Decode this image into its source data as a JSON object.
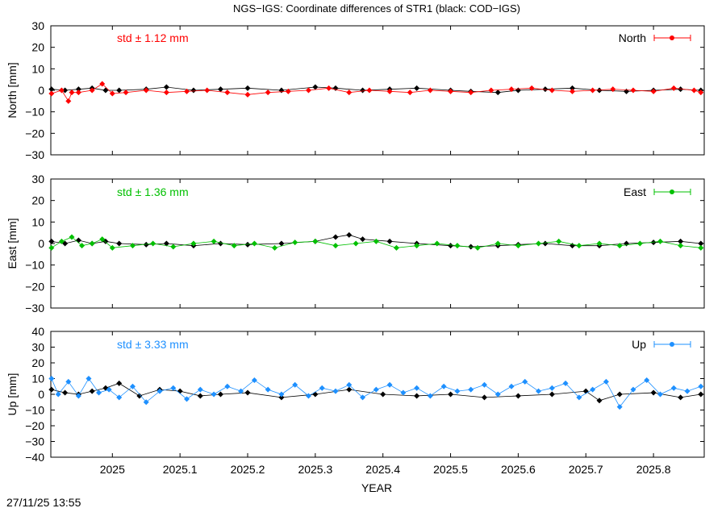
{
  "title": "NGS−IGS: Coordinate differences of STR1 (black: COD−IGS)",
  "footer_timestamp": "27/11/25 13:55",
  "xlabel": "YEAR",
  "colors": {
    "black_series": "#000000",
    "north": "#ff0000",
    "east": "#00c000",
    "up": "#1e90ff"
  },
  "chart_data": [
    {
      "type": "line",
      "panel": "north",
      "ylabel": "North [mm]",
      "ylim": [
        -30,
        30
      ],
      "yticks": [
        30,
        20,
        10,
        0,
        -10,
        -20,
        -30
      ],
      "xlim": [
        2024.909,
        2025.875
      ],
      "xticks": [
        2025,
        2025.1,
        2025.2,
        2025.3,
        2025.4,
        2025.5,
        2025.6,
        2025.7,
        2025.8
      ],
      "xticklabels": [
        "2025",
        "2025.1",
        "2025.2",
        "2025.3",
        "2025.4",
        "2025.5",
        "2025.6",
        "2025.7",
        "2025.8"
      ],
      "legend": {
        "label": "North",
        "placement": "top-right"
      },
      "std_label": "std ± 1.12 mm",
      "grid": false,
      "series": [
        {
          "color": "#000000",
          "x": [
            2024.91,
            2024.93,
            2024.95,
            2024.97,
            2024.99,
            2025.01,
            2025.05,
            2025.08,
            2025.12,
            2025.16,
            2025.2,
            2025.25,
            2025.3,
            2025.33,
            2025.37,
            2025.41,
            2025.45,
            2025.5,
            2025.53,
            2025.57,
            2025.6,
            2025.64,
            2025.68,
            2025.72,
            2025.76,
            2025.8,
            2025.84,
            2025.87
          ],
          "y": [
            0.5,
            0,
            0.5,
            1,
            0,
            0,
            0.5,
            1.5,
            0,
            0.5,
            1,
            0,
            1.5,
            1,
            0,
            0.5,
            1,
            0,
            -0.5,
            -1,
            0,
            0.5,
            1,
            0,
            -0.5,
            0,
            0.5,
            0
          ]
        },
        {
          "name": "North",
          "color": "#ff0000",
          "x": [
            2024.91,
            2024.925,
            2024.935,
            2024.94,
            2024.95,
            2024.97,
            2024.985,
            2025.0,
            2025.02,
            2025.05,
            2025.08,
            2025.11,
            2025.14,
            2025.17,
            2025.2,
            2025.23,
            2025.26,
            2025.29,
            2025.32,
            2025.35,
            2025.38,
            2025.41,
            2025.44,
            2025.47,
            2025.5,
            2025.53,
            2025.56,
            2025.59,
            2025.62,
            2025.65,
            2025.68,
            2025.71,
            2025.74,
            2025.77,
            2025.8,
            2025.83,
            2025.86,
            2025.87
          ],
          "y": [
            -1.5,
            0,
            -5,
            -1,
            -1,
            0,
            3,
            -1.5,
            -1,
            0,
            -1,
            -0.5,
            0,
            -1,
            -2,
            -1,
            -0.5,
            0,
            1,
            -1,
            0,
            -0.5,
            -1,
            0,
            -0.5,
            -1,
            0,
            0.5,
            1,
            0,
            -0.5,
            0,
            0.5,
            0,
            -0.5,
            1,
            0,
            -1
          ]
        }
      ]
    },
    {
      "type": "line",
      "panel": "east",
      "ylabel": "East [mm]",
      "ylim": [
        -30,
        30
      ],
      "yticks": [
        30,
        20,
        10,
        0,
        -10,
        -20,
        -30
      ],
      "xlim": [
        2024.909,
        2025.875
      ],
      "xticks": [
        2025,
        2025.1,
        2025.2,
        2025.3,
        2025.4,
        2025.5,
        2025.6,
        2025.7,
        2025.8
      ],
      "xticklabels": [
        "2025",
        "2025.1",
        "2025.2",
        "2025.3",
        "2025.4",
        "2025.5",
        "2025.6",
        "2025.7",
        "2025.8"
      ],
      "legend": {
        "label": "East",
        "placement": "top-right"
      },
      "std_label": "std ± 1.36 mm",
      "grid": false,
      "series": [
        {
          "color": "#000000",
          "x": [
            2024.91,
            2024.93,
            2024.95,
            2024.97,
            2024.99,
            2025.01,
            2025.05,
            2025.08,
            2025.12,
            2025.16,
            2025.2,
            2025.25,
            2025.3,
            2025.33,
            2025.35,
            2025.37,
            2025.41,
            2025.45,
            2025.5,
            2025.53,
            2025.57,
            2025.6,
            2025.64,
            2025.68,
            2025.72,
            2025.76,
            2025.8,
            2025.84,
            2025.87
          ],
          "y": [
            1,
            0,
            1.5,
            0,
            1,
            0,
            -0.5,
            0,
            -1,
            0,
            -0.5,
            0,
            1,
            3,
            4,
            2,
            1,
            0,
            -1,
            -1.5,
            -1,
            -0.5,
            0,
            -1,
            -1,
            0,
            0.5,
            1,
            0
          ]
        },
        {
          "name": "East",
          "color": "#00c000",
          "x": [
            2024.91,
            2024.925,
            2024.94,
            2024.955,
            2024.97,
            2024.985,
            2025.0,
            2025.03,
            2025.06,
            2025.09,
            2025.12,
            2025.15,
            2025.18,
            2025.21,
            2025.24,
            2025.27,
            2025.3,
            2025.33,
            2025.36,
            2025.39,
            2025.42,
            2025.45,
            2025.48,
            2025.51,
            2025.54,
            2025.57,
            2025.6,
            2025.63,
            2025.66,
            2025.69,
            2025.72,
            2025.75,
            2025.78,
            2025.81,
            2025.84,
            2025.87
          ],
          "y": [
            -2,
            1,
            3,
            -1,
            0,
            2,
            -2,
            -1,
            0,
            -1.5,
            0,
            1,
            -1,
            0,
            -2,
            0.5,
            1,
            -1,
            0,
            1,
            -2,
            -1,
            0,
            -1,
            -2,
            0,
            -1,
            0,
            1,
            -1,
            0,
            -1,
            0,
            1,
            -1,
            -2
          ]
        }
      ]
    },
    {
      "type": "line",
      "panel": "up",
      "ylabel": "Up [mm]",
      "ylim": [
        -40,
        40
      ],
      "yticks": [
        40,
        30,
        20,
        10,
        0,
        -10,
        -20,
        -30,
        -40
      ],
      "xlim": [
        2024.909,
        2025.875
      ],
      "xticks": [
        2025,
        2025.1,
        2025.2,
        2025.3,
        2025.4,
        2025.5,
        2025.6,
        2025.7,
        2025.8
      ],
      "xticklabels": [
        "2025",
        "2025.1",
        "2025.2",
        "2025.3",
        "2025.4",
        "2025.5",
        "2025.6",
        "2025.7",
        "2025.8"
      ],
      "legend": {
        "label": "Up",
        "placement": "top-right"
      },
      "std_label": "std ± 3.33 mm",
      "grid": false,
      "series": [
        {
          "color": "#000000",
          "x": [
            2024.91,
            2024.93,
            2024.95,
            2024.97,
            2024.99,
            2025.01,
            2025.04,
            2025.07,
            2025.1,
            2025.13,
            2025.16,
            2025.2,
            2025.25,
            2025.3,
            2025.35,
            2025.4,
            2025.45,
            2025.5,
            2025.55,
            2025.6,
            2025.65,
            2025.7,
            2025.72,
            2025.75,
            2025.8,
            2025.84,
            2025.87
          ],
          "y": [
            3,
            1,
            0,
            2,
            4,
            7,
            -1,
            3,
            2,
            -1,
            0,
            1,
            -2,
            0,
            3,
            0,
            -1,
            0,
            -2,
            -1,
            0,
            2,
            -4,
            0,
            1,
            -2,
            0
          ]
        },
        {
          "name": "Up",
          "color": "#1e90ff",
          "x": [
            2024.91,
            2024.92,
            2024.935,
            2024.95,
            2024.965,
            2024.98,
            2024.995,
            2025.01,
            2025.03,
            2025.05,
            2025.07,
            2025.09,
            2025.11,
            2025.13,
            2025.15,
            2025.17,
            2025.19,
            2025.21,
            2025.23,
            2025.25,
            2025.27,
            2025.29,
            2025.31,
            2025.33,
            2025.35,
            2025.37,
            2025.39,
            2025.41,
            2025.43,
            2025.45,
            2025.47,
            2025.49,
            2025.51,
            2025.53,
            2025.55,
            2025.57,
            2025.59,
            2025.61,
            2025.63,
            2025.65,
            2025.67,
            2025.69,
            2025.71,
            2025.73,
            2025.75,
            2025.77,
            2025.79,
            2025.81,
            2025.83,
            2025.85,
            2025.87
          ],
          "y": [
            10,
            0,
            8,
            -1,
            10,
            1,
            3,
            -2,
            5,
            -5,
            2,
            4,
            -3,
            3,
            0,
            5,
            2,
            9,
            3,
            0,
            6,
            -1,
            4,
            2,
            6,
            -2,
            3,
            6,
            1,
            4,
            -1,
            5,
            2,
            3,
            6,
            0,
            5,
            8,
            2,
            4,
            7,
            -2,
            3,
            8,
            -8,
            3,
            9,
            0,
            4,
            2,
            5
          ]
        }
      ]
    }
  ]
}
